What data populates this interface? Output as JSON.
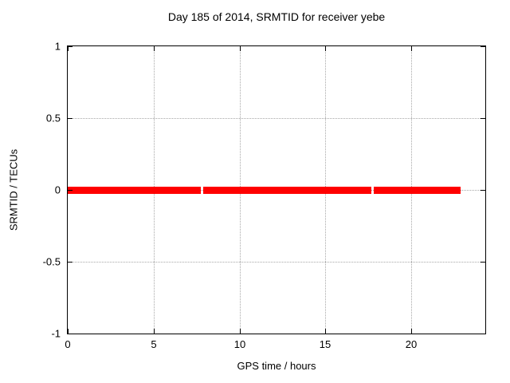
{
  "chart_data": {
    "type": "line",
    "title": "Day 185 of 2014, SRMTID for receiver yebe",
    "xlabel": "GPS time / hours",
    "ylabel": "SRMTID / TECUs",
    "xlim": [
      0,
      24.3
    ],
    "ylim": [
      -1,
      1
    ],
    "xticks": [
      {
        "value": 0,
        "label": "0"
      },
      {
        "value": 5,
        "label": "5"
      },
      {
        "value": 10,
        "label": "10"
      },
      {
        "value": 15,
        "label": "15"
      },
      {
        "value": 20,
        "label": "20"
      }
    ],
    "yticks": [
      {
        "value": -1,
        "label": "-1"
      },
      {
        "value": -0.5,
        "label": "-0.5"
      },
      {
        "value": 0,
        "label": "0"
      },
      {
        "value": 0.5,
        "label": "0.5"
      },
      {
        "value": 1,
        "label": "1"
      }
    ],
    "grid": true,
    "grid_style": "dotted",
    "grid_color": "#a8a8a8",
    "axis_color": "#000000",
    "background_color": "#ffffff",
    "legend_position": "none",
    "series": [
      {
        "name": "SRMTID",
        "color": "#ff0000",
        "line_thickness_px": 9,
        "y_value": 0,
        "segments_x_hours": [
          [
            0.0,
            7.76
          ],
          [
            7.9,
            17.66
          ],
          [
            17.82,
            22.88
          ]
        ]
      }
    ]
  }
}
